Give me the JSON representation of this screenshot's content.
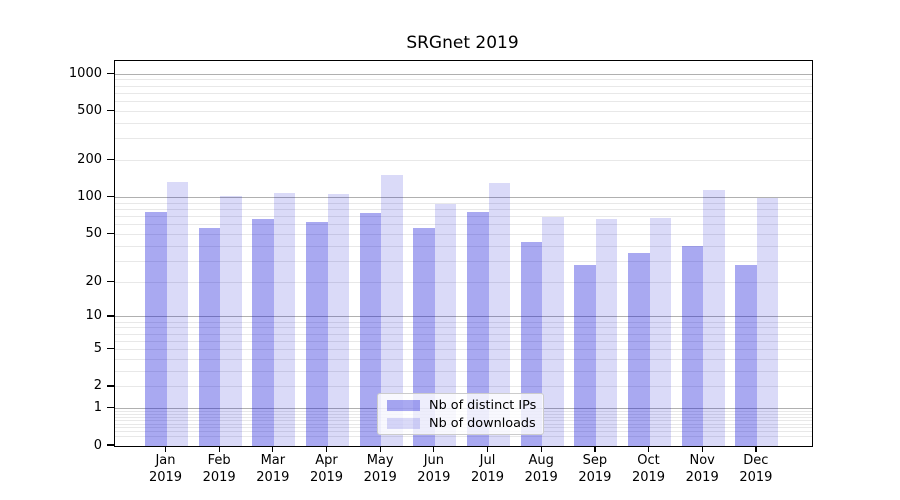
{
  "title": "SRGnet 2019",
  "legend": {
    "items": [
      {
        "label": "Nb of distinct IPs",
        "series_key": "distinct_ips"
      },
      {
        "label": "Nb of downloads",
        "series_key": "downloads"
      }
    ]
  },
  "colors": {
    "distinct_ips": "#a9a9f1",
    "downloads": "#d9d9f8",
    "distinct_ips_fill": "rgba(10,10,215,0.35)",
    "downloads_fill": "rgba(5,5,210,0.15)",
    "grid_major": "#b0b0b0",
    "grid_minor": "#e8e8e8",
    "axis": "#000000",
    "background": "#ffffff"
  },
  "chart_data": {
    "type": "bar",
    "title": "SRGnet 2019",
    "categories": [
      "Jan 2019",
      "Feb 2019",
      "Mar 2019",
      "Apr 2019",
      "May 2019",
      "Jun 2019",
      "Jul 2019",
      "Aug 2019",
      "Sep 2019",
      "Oct 2019",
      "Nov 2019",
      "Dec 2019"
    ],
    "series": [
      {
        "name": "Nb of distinct IPs",
        "values": [
          76,
          57,
          67,
          63,
          75,
          56,
          76,
          43,
          28,
          35,
          40,
          28
        ]
      },
      {
        "name": "Nb of downloads",
        "values": [
          133,
          103,
          110,
          107,
          153,
          88,
          132,
          69,
          67,
          68,
          115,
          100
        ]
      }
    ],
    "yscale": "log1p",
    "ylim": [
      0,
      1279
    ],
    "y_ticks": [
      1000,
      500,
      200,
      100,
      50,
      20,
      10,
      5,
      2,
      1,
      0
    ],
    "y_major_gridlines": [
      1,
      10,
      100,
      1000
    ],
    "y_minor_gridlines": [
      0.2,
      0.3,
      0.4,
      0.5,
      0.6,
      0.7,
      0.8,
      0.9,
      2,
      3,
      4,
      5,
      6,
      7,
      8,
      9,
      20,
      30,
      40,
      50,
      60,
      70,
      80,
      90,
      200,
      300,
      400,
      500,
      600,
      700,
      800,
      900
    ],
    "grid": true,
    "legend_position": "inside lower center",
    "xlabel": "",
    "ylabel": ""
  }
}
